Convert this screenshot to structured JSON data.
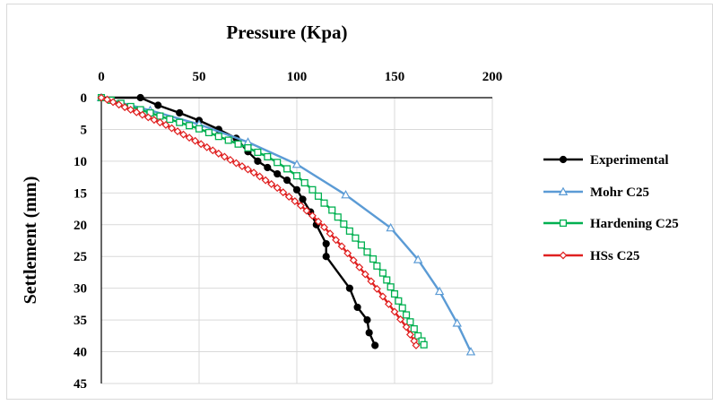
{
  "chart_data": {
    "type": "line",
    "title": "Pressure (Kpa)",
    "xlabel": "Pressure (Kpa)",
    "ylabel": "Settlement (mm)",
    "xlim": [
      0,
      200
    ],
    "ylim": [
      0,
      45
    ],
    "y_inverted": true,
    "x_axis_position": "top",
    "x_ticks": [
      "0",
      "50",
      "100",
      "150",
      "200"
    ],
    "y_ticks": [
      "0",
      "5",
      "10",
      "15",
      "20",
      "25",
      "30",
      "35",
      "40",
      "45"
    ],
    "grid": {
      "vertical": true,
      "horizontal": true
    },
    "legend_position": "right",
    "series": [
      {
        "name": "Experimental",
        "color": "#000000",
        "marker": "circle",
        "points": [
          [
            0,
            0
          ],
          [
            20,
            0
          ],
          [
            29,
            1.2
          ],
          [
            40,
            2.4
          ],
          [
            50,
            3.6
          ],
          [
            60,
            5
          ],
          [
            69,
            6.4
          ],
          [
            75,
            8.5
          ],
          [
            80,
            10
          ],
          [
            85,
            11
          ],
          [
            90,
            12
          ],
          [
            95,
            13
          ],
          [
            100,
            14.5
          ],
          [
            103,
            16
          ],
          [
            107,
            18
          ],
          [
            110,
            20
          ],
          [
            115,
            23
          ],
          [
            115,
            25
          ],
          [
            127,
            30
          ],
          [
            131,
            33
          ],
          [
            136,
            35
          ],
          [
            137,
            37
          ],
          [
            140,
            39
          ]
        ]
      },
      {
        "name": "Mohr C25",
        "color": "#5b9bd5",
        "marker": "triangle",
        "points": [
          [
            0,
            0
          ],
          [
            25,
            2
          ],
          [
            50,
            4.2
          ],
          [
            75,
            7
          ],
          [
            100,
            10.5
          ],
          [
            125,
            15.3
          ],
          [
            148,
            20.5
          ],
          [
            162,
            25.5
          ],
          [
            173,
            30.5
          ],
          [
            182,
            35.5
          ],
          [
            189,
            40
          ]
        ]
      },
      {
        "name": "Hardening C25",
        "color": "#00b050",
        "marker": "square",
        "points": [
          [
            0,
            0
          ],
          [
            5,
            0.4
          ],
          [
            10,
            0.9
          ],
          [
            15,
            1.4
          ],
          [
            20,
            1.9
          ],
          [
            25,
            2.4
          ],
          [
            30,
            2.9
          ],
          [
            35,
            3.4
          ],
          [
            40,
            3.9
          ],
          [
            45,
            4.4
          ],
          [
            50,
            4.9
          ],
          [
            55,
            5.5
          ],
          [
            60,
            6.1
          ],
          [
            65,
            6.7
          ],
          [
            70,
            7.3
          ],
          [
            75,
            7.9
          ],
          [
            80,
            8.6
          ],
          [
            85,
            9.3
          ],
          [
            90,
            10.2
          ],
          [
            95,
            11.2
          ],
          [
            100,
            12.3
          ],
          [
            104,
            13.4
          ],
          [
            108,
            14.5
          ],
          [
            111,
            15.5
          ],
          [
            114,
            16.6
          ],
          [
            118,
            17.7
          ],
          [
            121,
            18.8
          ],
          [
            124,
            19.9
          ],
          [
            127,
            21
          ],
          [
            130,
            22.1
          ],
          [
            133,
            23.2
          ],
          [
            136,
            24.3
          ],
          [
            139,
            25.4
          ],
          [
            141,
            26.5
          ],
          [
            144,
            27.6
          ],
          [
            146,
            28.7
          ],
          [
            148,
            29.8
          ],
          [
            150,
            30.9
          ],
          [
            152,
            32
          ],
          [
            154,
            33.1
          ],
          [
            156,
            34.2
          ],
          [
            158,
            35.3
          ],
          [
            160,
            36.4
          ],
          [
            162,
            37.5
          ],
          [
            164,
            38.3
          ],
          [
            165,
            38.9
          ]
        ]
      },
      {
        "name": "HSs C25",
        "color": "#e02020",
        "marker": "diamond",
        "points": [
          [
            0,
            0
          ],
          [
            3,
            0.3
          ],
          [
            6,
            0.7
          ],
          [
            9,
            1.1
          ],
          [
            12,
            1.5
          ],
          [
            15,
            1.9
          ],
          [
            18,
            2.3
          ],
          [
            21,
            2.7
          ],
          [
            24,
            3.1
          ],
          [
            27,
            3.5
          ],
          [
            30,
            3.9
          ],
          [
            33,
            4.3
          ],
          [
            36,
            4.8
          ],
          [
            39,
            5.3
          ],
          [
            42,
            5.8
          ],
          [
            45,
            6.3
          ],
          [
            48,
            6.8
          ],
          [
            51,
            7.3
          ],
          [
            54,
            7.8
          ],
          [
            57,
            8.3
          ],
          [
            60,
            8.8
          ],
          [
            63,
            9.3
          ],
          [
            66,
            9.8
          ],
          [
            69,
            10.3
          ],
          [
            72,
            10.8
          ],
          [
            75,
            11.3
          ],
          [
            78,
            11.8
          ],
          [
            81,
            12.4
          ],
          [
            84,
            13
          ],
          [
            87,
            13.6
          ],
          [
            90,
            14.2
          ],
          [
            93,
            14.9
          ],
          [
            96,
            15.6
          ],
          [
            99,
            16.3
          ],
          [
            102,
            17
          ],
          [
            105,
            17.8
          ],
          [
            108,
            18.6
          ],
          [
            111,
            19.5
          ],
          [
            114,
            20.4
          ],
          [
            117,
            21.4
          ],
          [
            120,
            22.4
          ],
          [
            123,
            23.4
          ],
          [
            126,
            24.5
          ],
          [
            129,
            25.6
          ],
          [
            132,
            26.7
          ],
          [
            135,
            27.8
          ],
          [
            138,
            28.9
          ],
          [
            141,
            30.1
          ],
          [
            144,
            31.3
          ],
          [
            147,
            32.5
          ],
          [
            150,
            33.7
          ],
          [
            153,
            34.9
          ],
          [
            156,
            36.1
          ],
          [
            158,
            37.3
          ],
          [
            160,
            38.3
          ],
          [
            161,
            39
          ]
        ]
      }
    ]
  }
}
